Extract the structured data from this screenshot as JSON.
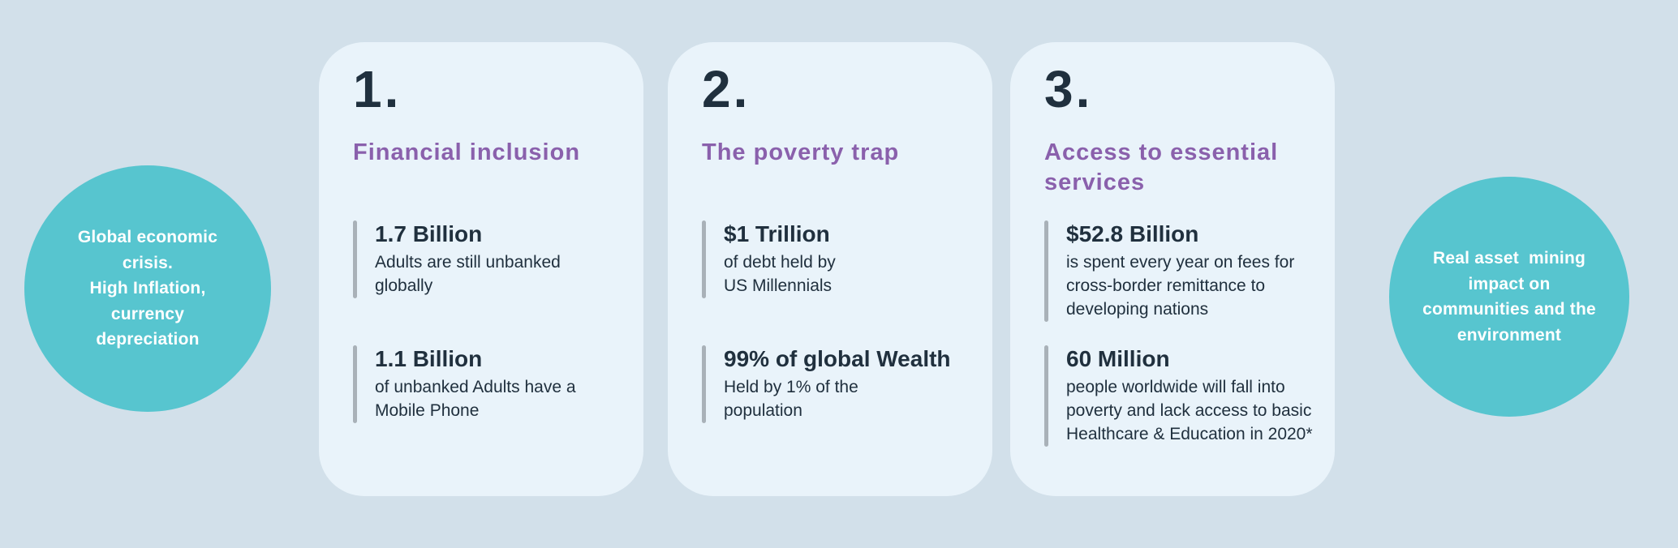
{
  "colors": {
    "page_bg": "#d2e0ea",
    "card_bg": "#e9f3fa",
    "accent_teal": "#57c5cf",
    "accent_purple": "#8a60ac",
    "text_dark": "#20303e",
    "bar_gray": "#a9b1b8",
    "bubble_text": "#ffffff"
  },
  "left_circle": {
    "text": "Global economic\ncrisis.\nHigh Inflation,\ncurrency\ndepreciation"
  },
  "right_circle": {
    "text": "Real asset  mining\nimpact on\ncommunities and the\nenvironment"
  },
  "cards": [
    {
      "number": "1.",
      "title": "Financial inclusion",
      "stats": [
        {
          "value": "1.7 Billion",
          "desc": "Adults are still unbanked\nglobally"
        },
        {
          "value": "1.1 Billion",
          "desc": "of unbanked Adults have a\nMobile Phone"
        }
      ]
    },
    {
      "number": "2.",
      "title": "The poverty trap",
      "stats": [
        {
          "value": "$1 Trillion",
          "desc": "of debt held by\nUS Millennials"
        },
        {
          "value": "99% of global Wealth",
          "desc": "Held by 1% of the\npopulation"
        }
      ]
    },
    {
      "number": "3.",
      "title": "Access to essential\nservices",
      "stats": [
        {
          "value": "$52.8 Billion",
          "desc": "is spent every year on fees for\ncross-border remittance to\ndeveloping nations"
        },
        {
          "value": "60 Million",
          "desc": "people worldwide will fall into\npoverty and lack access to basic\nHealthcare & Education in 2020*"
        }
      ]
    }
  ]
}
